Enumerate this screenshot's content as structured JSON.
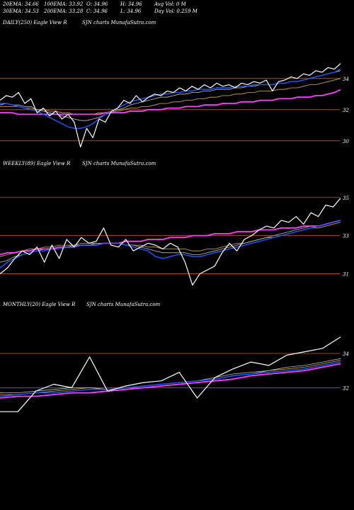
{
  "header": {
    "row1": [
      {
        "id": "ema20",
        "text": "20EMA: 34.66"
      },
      {
        "id": "ema100",
        "text": "100EMA: 33.92"
      },
      {
        "id": "open",
        "text": "O: 34.96"
      },
      {
        "id": "high",
        "text": "H: 34.96"
      },
      {
        "id": "avgvol",
        "text": "Avg Vol: 0  M"
      }
    ],
    "row2": [
      {
        "id": "ema30",
        "text": "30EMA: 34.53"
      },
      {
        "id": "ema200",
        "text": "200EMA: 33.28"
      },
      {
        "id": "close",
        "text": "C: 34.96"
      },
      {
        "id": "low",
        "text": "L: 34.96"
      },
      {
        "id": "dayvol",
        "text": "Day Vol: 0.259 M"
      }
    ]
  },
  "panels": {
    "daily": {
      "label": "DAILY(250) Eagle  View  R",
      "source": "SJN  charts MunafaSutra.com"
    },
    "weekly": {
      "label": "WEEKLY(89) Eagle  View  R",
      "source": "SJN  charts MunafaSutra.com"
    },
    "monthly": {
      "label": "MONTHLY(20) Eagle  View  R",
      "source": "SJN  charts MunafaSutra.com"
    }
  },
  "colors": {
    "background": "#000000",
    "price": "#ffffff",
    "ema_short": "#1e5cff",
    "ema_long": "#ff40ff",
    "ema_mid": "#d8b040",
    "ema_grey": "#c0c0c0",
    "hline": "#c06020"
  },
  "chart_data": [
    {
      "name": "daily",
      "type": "line",
      "ylim": [
        29.4,
        35.4
      ],
      "yticks": [
        30,
        32,
        34
      ],
      "hlines": [
        30,
        32,
        34
      ],
      "series": [
        {
          "role": "price",
          "values": [
            32.6,
            32.9,
            32.8,
            33.1,
            32.4,
            32.7,
            31.8,
            32.1,
            31.6,
            31.9,
            31.4,
            31.7,
            31.2,
            29.6,
            30.8,
            30.2,
            31.4,
            31.2,
            31.9,
            32.1,
            32.6,
            32.4,
            32.9,
            32.5,
            32.8,
            33.0,
            32.9,
            33.2,
            33.1,
            33.4,
            33.2,
            33.5,
            33.3,
            33.6,
            33.4,
            33.7,
            33.5,
            33.6,
            33.4,
            33.7,
            33.6,
            33.8,
            33.7,
            33.9,
            33.2,
            33.8,
            33.9,
            34.1,
            34.0,
            34.3,
            34.2,
            34.5,
            34.4,
            34.7,
            34.6,
            34.96
          ]
        },
        {
          "role": "ema_short",
          "values": [
            32.4,
            32.4,
            32.3,
            32.2,
            32.1,
            32.0,
            31.9,
            31.7,
            31.5,
            31.3,
            31.1,
            30.9,
            30.8,
            30.8,
            30.9,
            31.1,
            31.4,
            31.7,
            31.9,
            32.1,
            32.3,
            32.5,
            32.6,
            32.7,
            32.8,
            32.9,
            33.0,
            33.0,
            33.1,
            33.1,
            33.2,
            33.2,
            33.3,
            33.3,
            33.3,
            33.4,
            33.4,
            33.4,
            33.5,
            33.5,
            33.5,
            33.6,
            33.6,
            33.6,
            33.6,
            33.7,
            33.7,
            33.8,
            33.8,
            33.9,
            34.0,
            34.1,
            34.2,
            34.3,
            34.4,
            34.6
          ]
        },
        {
          "role": "ema_mid",
          "values": [
            32.2,
            32.2,
            32.2,
            32.2,
            32.1,
            32.1,
            32.0,
            32.0,
            31.9,
            31.9,
            31.8,
            31.8,
            31.7,
            31.7,
            31.7,
            31.7,
            31.8,
            31.8,
            31.9,
            31.9,
            32.0,
            32.1,
            32.1,
            32.2,
            32.2,
            32.3,
            32.4,
            32.4,
            32.5,
            32.5,
            32.6,
            32.6,
            32.7,
            32.7,
            32.8,
            32.8,
            32.9,
            32.9,
            33.0,
            33.0,
            33.1,
            33.1,
            33.2,
            33.2,
            33.2,
            33.3,
            33.3,
            33.4,
            33.4,
            33.5,
            33.6,
            33.6,
            33.7,
            33.8,
            33.9,
            34.0
          ]
        },
        {
          "role": "ema_grey",
          "values": [
            32.3,
            32.4,
            32.3,
            32.3,
            32.2,
            32.2,
            32.0,
            31.9,
            31.8,
            31.7,
            31.6,
            31.5,
            31.4,
            31.3,
            31.3,
            31.4,
            31.5,
            31.7,
            31.8,
            32.0,
            32.1,
            32.3,
            32.4,
            32.5,
            32.6,
            32.7,
            32.8,
            32.8,
            32.9,
            33.0,
            33.0,
            33.1,
            33.1,
            33.2,
            33.2,
            33.3,
            33.3,
            33.3,
            33.4,
            33.4,
            33.5,
            33.5,
            33.6,
            33.6,
            33.6,
            33.7,
            33.7,
            33.8,
            33.8,
            33.9,
            34.0,
            34.1,
            34.2,
            34.3,
            34.4,
            34.5
          ]
        },
        {
          "role": "ema_long",
          "values": [
            31.8,
            31.8,
            31.8,
            31.7,
            31.7,
            31.7,
            31.7,
            31.7,
            31.7,
            31.7,
            31.7,
            31.7,
            31.7,
            31.7,
            31.7,
            31.7,
            31.7,
            31.8,
            31.8,
            31.8,
            31.8,
            31.9,
            31.9,
            31.9,
            32.0,
            32.0,
            32.0,
            32.1,
            32.1,
            32.1,
            32.2,
            32.2,
            32.2,
            32.3,
            32.3,
            32.3,
            32.4,
            32.4,
            32.4,
            32.5,
            32.5,
            32.5,
            32.6,
            32.6,
            32.6,
            32.7,
            32.7,
            32.7,
            32.8,
            32.8,
            32.8,
            32.9,
            32.9,
            33.0,
            33.1,
            33.28
          ]
        }
      ]
    },
    {
      "name": "weekly",
      "type": "line",
      "ylim": [
        30.2,
        35.4
      ],
      "yticks": [
        31,
        33,
        35
      ],
      "hlines": [
        31,
        33,
        35
      ],
      "series": [
        {
          "role": "price",
          "values": [
            31.0,
            31.3,
            31.8,
            32.2,
            32.0,
            32.4,
            31.6,
            32.5,
            31.8,
            32.8,
            32.4,
            32.9,
            32.6,
            32.7,
            33.4,
            32.5,
            32.4,
            32.8,
            32.2,
            32.4,
            32.6,
            32.5,
            32.3,
            32.6,
            32.4,
            31.6,
            30.4,
            31.0,
            31.2,
            31.4,
            32.1,
            32.6,
            32.2,
            32.8,
            33.0,
            33.3,
            33.5,
            33.4,
            33.8,
            33.7,
            34.0,
            33.6,
            34.2,
            34.0,
            34.6,
            34.5,
            34.96
          ]
        },
        {
          "role": "ema_short",
          "values": [
            31.3,
            31.6,
            31.8,
            32.0,
            32.1,
            32.2,
            32.2,
            32.3,
            32.3,
            32.4,
            32.4,
            32.5,
            32.5,
            32.5,
            32.6,
            32.6,
            32.6,
            32.5,
            32.4,
            32.3,
            32.2,
            31.9,
            31.8,
            31.9,
            32.0,
            32.0,
            31.9,
            31.9,
            32.0,
            32.1,
            32.2,
            32.3,
            32.4,
            32.5,
            32.6,
            32.7,
            32.8,
            32.9,
            33.0,
            33.1,
            33.2,
            33.3,
            33.4,
            33.5,
            33.6,
            33.7,
            33.8
          ]
        },
        {
          "role": "ema_mid",
          "values": [
            31.9,
            32.0,
            32.1,
            32.2,
            32.3,
            32.3,
            32.4,
            32.4,
            32.5,
            32.5,
            32.5,
            32.6,
            32.6,
            32.6,
            32.6,
            32.6,
            32.6,
            32.5,
            32.5,
            32.5,
            32.4,
            32.4,
            32.3,
            32.3,
            32.3,
            32.3,
            32.2,
            32.2,
            32.3,
            32.3,
            32.4,
            32.5,
            32.6,
            32.6,
            32.7,
            32.8,
            32.9,
            32.9,
            33.0,
            33.1,
            33.2,
            33.3,
            33.4,
            33.4,
            33.5,
            33.6,
            33.7
          ]
        },
        {
          "role": "ema_grey",
          "values": [
            31.6,
            31.7,
            31.9,
            32.0,
            32.1,
            32.2,
            32.3,
            32.3,
            32.4,
            32.4,
            32.5,
            32.5,
            32.5,
            32.6,
            32.6,
            32.6,
            32.6,
            32.5,
            32.5,
            32.4,
            32.3,
            32.2,
            32.1,
            32.1,
            32.1,
            32.1,
            32.0,
            32.0,
            32.1,
            32.2,
            32.3,
            32.4,
            32.5,
            32.6,
            32.7,
            32.8,
            32.9,
            33.0,
            33.1,
            33.2,
            33.3,
            33.4,
            33.5,
            33.5,
            33.6,
            33.7,
            33.8
          ]
        },
        {
          "role": "ema_long",
          "values": [
            32.0,
            32.1,
            32.1,
            32.2,
            32.2,
            32.3,
            32.3,
            32.3,
            32.4,
            32.4,
            32.4,
            32.5,
            32.5,
            32.5,
            32.6,
            32.6,
            32.6,
            32.7,
            32.7,
            32.7,
            32.8,
            32.8,
            32.8,
            32.9,
            32.9,
            32.9,
            33.0,
            33.0,
            33.0,
            33.1,
            33.1,
            33.1,
            33.2,
            33.2,
            33.2,
            33.3,
            33.3,
            33.3,
            33.4,
            33.4,
            33.4,
            33.5,
            33.5,
            33.5,
            33.6,
            33.7,
            33.8
          ]
        }
      ]
    },
    {
      "name": "monthly",
      "type": "line",
      "ylim": [
        29.7,
        35.2
      ],
      "yticks": [
        32,
        34
      ],
      "hlines": [
        32,
        34
      ],
      "series": [
        {
          "role": "price",
          "values": [
            30.6,
            30.6,
            31.8,
            32.2,
            32.0,
            33.8,
            31.8,
            32.1,
            32.3,
            32.4,
            32.9,
            31.4,
            32.6,
            33.1,
            33.5,
            33.3,
            33.9,
            34.1,
            34.3,
            34.96
          ]
        },
        {
          "role": "ema_short",
          "values": [
            31.5,
            31.6,
            31.7,
            31.7,
            31.8,
            31.9,
            31.9,
            32.0,
            32.1,
            32.2,
            32.3,
            32.4,
            32.5,
            32.7,
            32.8,
            32.9,
            33.0,
            33.1,
            33.3,
            33.5
          ]
        },
        {
          "role": "ema_mid",
          "values": [
            31.6,
            31.6,
            31.7,
            31.8,
            31.9,
            32.0,
            31.9,
            32.0,
            32.1,
            32.2,
            32.3,
            32.4,
            32.5,
            32.7,
            32.8,
            33.0,
            33.1,
            33.2,
            33.4,
            33.6
          ]
        },
        {
          "role": "ema_grey",
          "values": [
            31.7,
            31.7,
            31.8,
            31.9,
            32.0,
            32.0,
            31.9,
            32.0,
            32.1,
            32.2,
            32.3,
            32.4,
            32.6,
            32.8,
            32.9,
            33.0,
            33.2,
            33.3,
            33.5,
            33.7
          ]
        },
        {
          "role": "ema_long",
          "values": [
            31.4,
            31.5,
            31.5,
            31.6,
            31.7,
            31.7,
            31.8,
            31.9,
            32.0,
            32.1,
            32.2,
            32.3,
            32.4,
            32.5,
            32.7,
            32.8,
            32.9,
            33.0,
            33.2,
            33.4
          ]
        }
      ]
    }
  ]
}
